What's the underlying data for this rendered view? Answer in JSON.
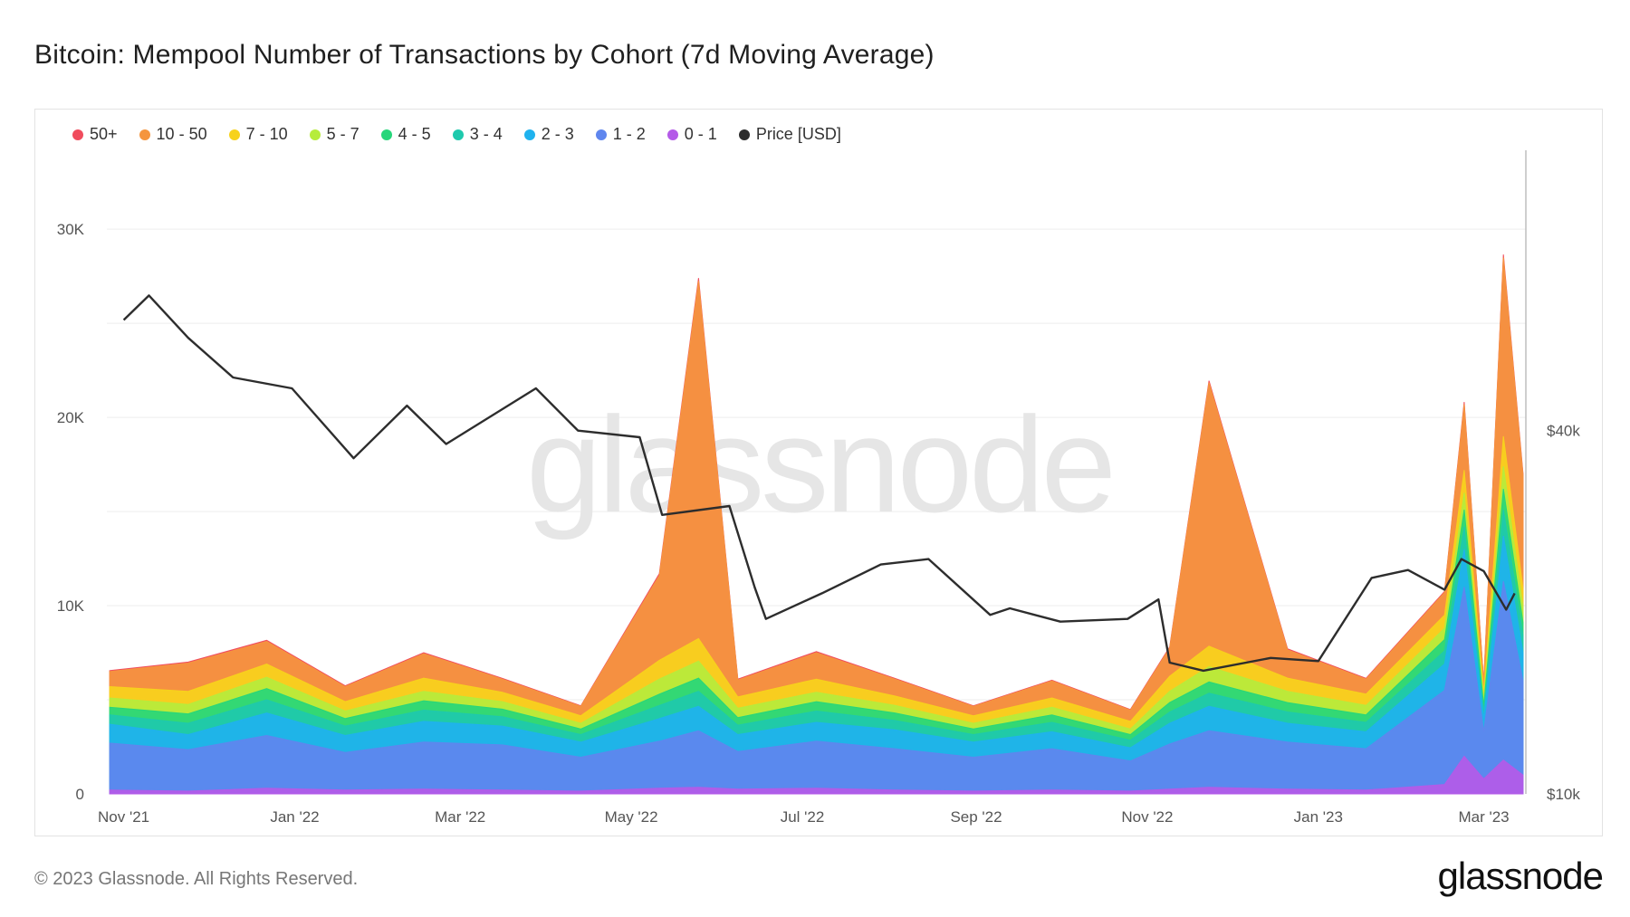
{
  "title": "Bitcoin: Mempool Number of Transactions by Cohort (7d Moving Average)",
  "footer": "© 2023 Glassnode. All Rights Reserved.",
  "brand": "glassnode",
  "watermark": "glassnode",
  "legend": [
    {
      "label": "50+",
      "color": "#f04c5d"
    },
    {
      "label": "10 - 50",
      "color": "#f5953e"
    },
    {
      "label": "7 - 10",
      "color": "#f7d21c"
    },
    {
      "label": "5 - 7",
      "color": "#b6ec3c"
    },
    {
      "label": "4 - 5",
      "color": "#27d67a"
    },
    {
      "label": "3 - 4",
      "color": "#1ec9ad"
    },
    {
      "label": "2 - 3",
      "color": "#1fb2ee"
    },
    {
      "label": "1 - 2",
      "color": "#5f86ee"
    },
    {
      "label": "0 - 1",
      "color": "#b45ae8"
    },
    {
      "label": "Price [USD]",
      "color": "#2d2d2d"
    }
  ],
  "chart_data": {
    "type": "area",
    "stacked": true,
    "y_left": {
      "ticks": [
        0,
        10000,
        20000,
        30000
      ],
      "tick_labels": [
        "0",
        "10K",
        "20K",
        "30K"
      ],
      "range": [
        0,
        34000
      ]
    },
    "y_right": {
      "ticks": [
        10000,
        40000
      ],
      "tick_labels": [
        "$10k",
        "$40k"
      ],
      "scale": "log"
    },
    "x_ticks": [
      "Nov '21",
      "Jan '22",
      "Mar '22",
      "May '22",
      "Jul '22",
      "Sep '22",
      "Nov '22",
      "Jan '23",
      "Mar '23"
    ],
    "x_dates": [
      "2021-10-27",
      "2021-11-24",
      "2021-12-22",
      "2022-01-19",
      "2022-02-16",
      "2022-03-16",
      "2022-04-13",
      "2022-05-11",
      "2022-05-25",
      "2022-06-08",
      "2022-07-06",
      "2022-08-03",
      "2022-08-31",
      "2022-09-28",
      "2022-10-26",
      "2022-11-09",
      "2022-11-23",
      "2022-12-21",
      "2023-01-18",
      "2023-02-15",
      "2023-02-22",
      "2023-03-01",
      "2023-03-08",
      "2023-03-15"
    ],
    "series": [
      {
        "name": "0 - 1",
        "values": [
          200,
          150,
          300,
          200,
          250,
          200,
          150,
          300,
          350,
          250,
          300,
          200,
          150,
          200,
          150,
          250,
          350,
          250,
          200,
          500,
          2000,
          800,
          1800,
          1000
        ]
      },
      {
        "name": "1 - 2",
        "values": [
          2500,
          2200,
          2800,
          2000,
          2500,
          2400,
          1800,
          2500,
          3000,
          2000,
          2500,
          2200,
          1800,
          2200,
          1600,
          2400,
          3000,
          2500,
          2200,
          5000,
          9000,
          2500,
          9500,
          5000
        ]
      },
      {
        "name": "2 - 3",
        "values": [
          1000,
          800,
          1200,
          900,
          1100,
          1000,
          800,
          1200,
          1300,
          900,
          1000,
          1000,
          800,
          900,
          700,
          1100,
          1300,
          1000,
          900,
          1400,
          2000,
          700,
          2400,
          1500
        ]
      },
      {
        "name": "3 - 4",
        "values": [
          500,
          600,
          700,
          500,
          600,
          500,
          400,
          700,
          800,
          500,
          600,
          500,
          400,
          500,
          400,
          600,
          700,
          600,
          500,
          700,
          1200,
          400,
          1400,
          900
        ]
      },
      {
        "name": "4 - 5",
        "values": [
          400,
          500,
          600,
          400,
          500,
          400,
          300,
          600,
          700,
          400,
          500,
          400,
          300,
          400,
          300,
          500,
          600,
          500,
          400,
          600,
          900,
          300,
          1100,
          700
        ]
      },
      {
        "name": "5 - 7",
        "values": [
          500,
          500,
          600,
          400,
          500,
          400,
          300,
          800,
          900,
          500,
          500,
          400,
          300,
          400,
          300,
          600,
          800,
          600,
          500,
          600,
          900,
          300,
          1200,
          800
        ]
      },
      {
        "name": "7 - 10",
        "values": [
          600,
          700,
          700,
          500,
          700,
          500,
          400,
          1000,
          1200,
          600,
          700,
          500,
          400,
          500,
          400,
          800,
          1100,
          700,
          600,
          700,
          1200,
          400,
          1600,
          1000
        ]
      },
      {
        "name": "10 - 50",
        "values": [
          800,
          1500,
          1200,
          800,
          1300,
          700,
          500,
          4500,
          19000,
          900,
          1400,
          900,
          500,
          900,
          600,
          1500,
          14000,
          1500,
          800,
          1200,
          3500,
          500,
          9500,
          6000
        ]
      },
      {
        "name": "50+",
        "values": [
          50,
          50,
          60,
          40,
          50,
          40,
          30,
          100,
          150,
          50,
          60,
          40,
          30,
          40,
          30,
          60,
          100,
          60,
          40,
          60,
          120,
          40,
          150,
          100
        ]
      }
    ],
    "price_series": {
      "name": "Price [USD]",
      "x": [
        "2021-11-01",
        "2021-11-10",
        "2021-11-24",
        "2021-12-10",
        "2021-12-31",
        "2022-01-22",
        "2022-02-10",
        "2022-02-24",
        "2022-03-28",
        "2022-04-12",
        "2022-05-04",
        "2022-05-12",
        "2022-06-05",
        "2022-06-14",
        "2022-06-18",
        "2022-07-08",
        "2022-07-29",
        "2022-08-15",
        "2022-09-06",
        "2022-09-13",
        "2022-10-01",
        "2022-10-25",
        "2022-11-05",
        "2022-11-09",
        "2022-11-21",
        "2022-12-15",
        "2023-01-01",
        "2023-01-20",
        "2023-02-02",
        "2023-02-15",
        "2023-02-21",
        "2023-03-01",
        "2023-03-09",
        "2023-03-12"
      ],
      "values": [
        61000,
        67000,
        57000,
        49000,
        47000,
        36000,
        44000,
        38000,
        47000,
        40000,
        39000,
        29000,
        30000,
        22000,
        19500,
        21500,
        24000,
        24500,
        19800,
        20300,
        19300,
        19500,
        21000,
        16500,
        16000,
        16800,
        16600,
        22800,
        23500,
        21800,
        24500,
        23400,
        20200,
        21500
      ]
    }
  }
}
